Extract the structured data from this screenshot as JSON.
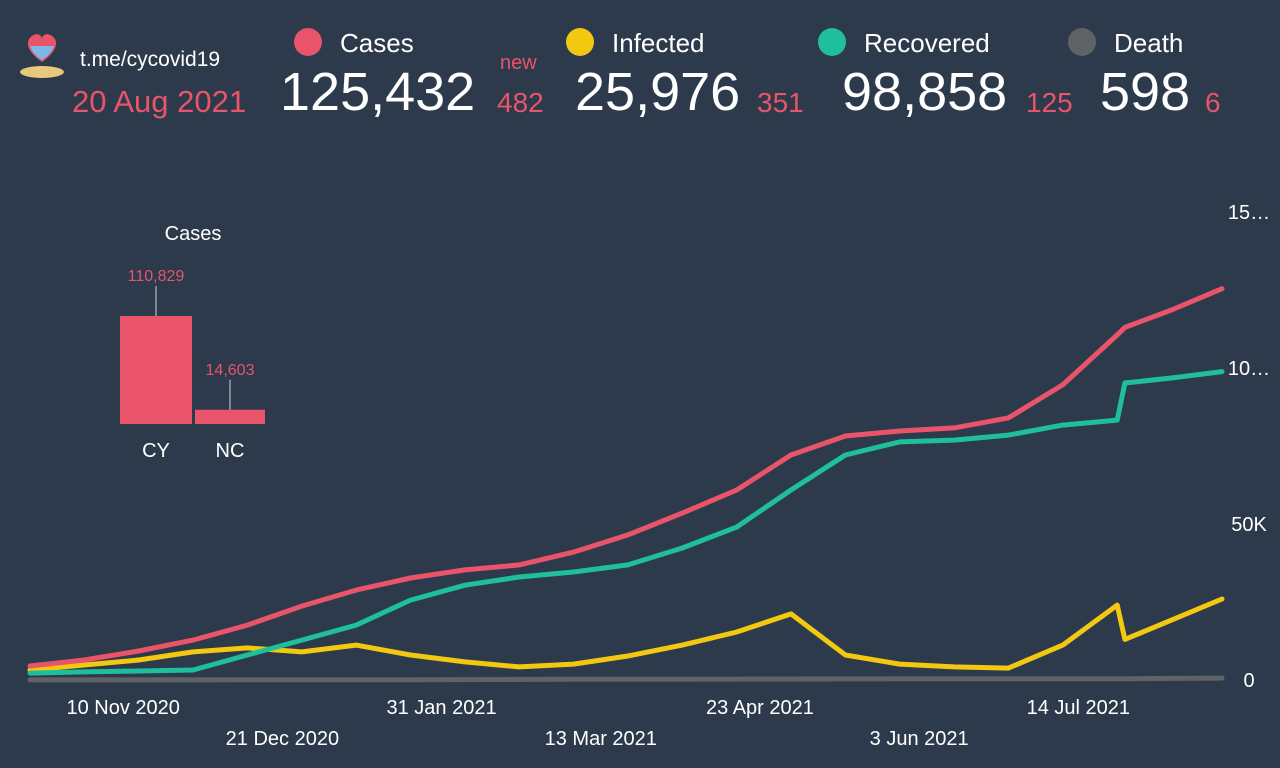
{
  "header": {
    "link": "t.me/cycovid19",
    "date": "20 Aug 2021",
    "new_label": "new",
    "stats": [
      {
        "name": "Cases",
        "color": "#e9546b",
        "total": "125,432",
        "new": 482
      },
      {
        "name": "Infected",
        "color": "#f2c811",
        "total": "25,976",
        "new": 351
      },
      {
        "name": "Recovered",
        "color": "#1fbf9b",
        "total": "98,858",
        "new": 125
      },
      {
        "name": "Death",
        "color": "#606366",
        "total": "598",
        "new": 6
      }
    ]
  },
  "chart_data": [
    {
      "type": "bar",
      "title": "Cases",
      "categories": [
        "CY",
        "NC"
      ],
      "values": [
        110829,
        14603
      ],
      "value_labels": [
        "110,829",
        "14,603"
      ],
      "color": "#e9546b"
    },
    {
      "type": "line",
      "x": [
        "17 Oct 2020",
        "31 Oct 2020",
        "14 Nov 2020",
        "28 Nov 2020",
        "12 Dec 2020",
        "26 Dec 2020",
        "9 Jan 2021",
        "23 Jan 2021",
        "6 Feb 2021",
        "20 Feb 2021",
        "6 Mar 2021",
        "20 Mar 2021",
        "3 Apr 2021",
        "17 Apr 2021",
        "1 May 2021",
        "15 May 2021",
        "29 May 2021",
        "12 Jun 2021",
        "26 Jun 2021",
        "10 Jul 2021",
        "24 Jul 2021",
        "26 Jul 2021",
        "7 Aug 2021",
        "20 Aug 2021"
      ],
      "xlim": [
        "17 Oct 2020",
        "20 Aug 2021"
      ],
      "xticks": [
        "10 Nov 2020",
        "21 Dec 2020",
        "31 Jan 2021",
        "13 Mar 2021",
        "23 Apr 2021",
        "3 Jun 2021",
        "14 Jul 2021"
      ],
      "ylim": [
        0,
        150000
      ],
      "yticks": [
        0,
        {
          "value": 50000,
          "label": "50K"
        },
        {
          "value": 100000,
          "label": "10…"
        },
        {
          "value": 150000,
          "label": "15…"
        }
      ],
      "grid": false,
      "series": [
        {
          "name": "Death",
          "color": "#606366",
          "values": [
            20,
            25,
            30,
            40,
            60,
            70,
            90,
            110,
            140,
            180,
            210,
            230,
            250,
            280,
            310,
            350,
            370,
            375,
            376,
            380,
            400,
            410,
            500,
            598
          ]
        },
        {
          "name": "Infected",
          "color": "#f2c811",
          "values": [
            3200,
            4800,
            6400,
            9000,
            10300,
            9000,
            11200,
            8000,
            5800,
            4200,
            5100,
            7700,
            11200,
            15400,
            21200,
            8000,
            5100,
            4200,
            3800,
            11200,
            24000,
            13000,
            19200,
            25976
          ]
        },
        {
          "name": "Recovered",
          "color": "#1fbf9b",
          "values": [
            2200,
            2600,
            2900,
            3200,
            8000,
            12800,
            17600,
            25600,
            30400,
            33000,
            34600,
            36900,
            42300,
            49000,
            60900,
            72100,
            76300,
            76900,
            78500,
            81700,
            83300,
            95200,
            96800,
            98858
          ]
        },
        {
          "name": "Cases",
          "color": "#e9546b",
          "values": [
            4500,
            6400,
            9300,
            12800,
            17600,
            23700,
            28800,
            32700,
            35300,
            36900,
            41000,
            46500,
            53500,
            60900,
            72100,
            78200,
            79800,
            80800,
            84000,
            94600,
            110600,
            113000,
            118600,
            125432
          ]
        }
      ]
    }
  ]
}
